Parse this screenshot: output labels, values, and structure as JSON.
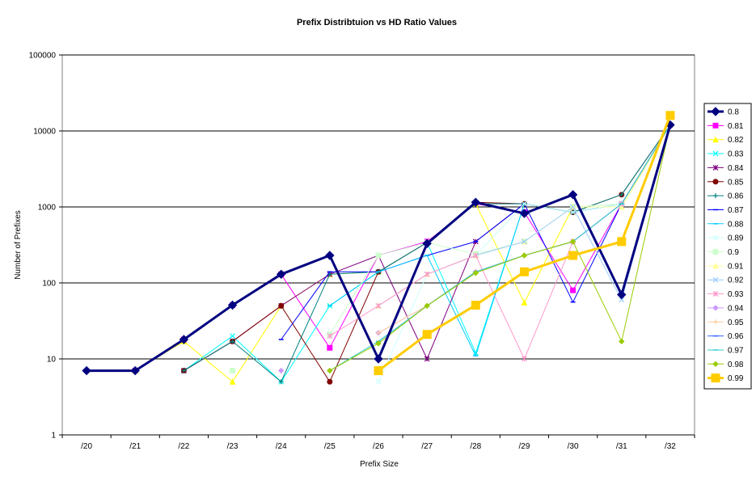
{
  "chart_data": {
    "type": "line",
    "title": "Prefix Distribtuion vs HD Ratio Values",
    "xlabel": "Prefix Size",
    "ylabel": "Number of Prefixes",
    "yscale": "log",
    "ylim": [
      1,
      100000
    ],
    "y_ticks": [
      1,
      10,
      100,
      1000,
      10000,
      100000
    ],
    "y_tick_labels": [
      "1",
      "10",
      "100",
      "1000",
      "10000",
      "100000"
    ],
    "grid": "horizontal major gridlines",
    "legend_position": "right",
    "categories": [
      "/20",
      "/21",
      "/22",
      "/23",
      "/24",
      "/25",
      "/26",
      "/27",
      "/28",
      "/29",
      "/30",
      "/31",
      "/32"
    ],
    "series": [
      {
        "name": "0.8",
        "color": "#000080",
        "marker": "diamond",
        "width": 3,
        "values": [
          7,
          7,
          18,
          51,
          130,
          230,
          10,
          330,
          1150,
          820,
          1450,
          70,
          12000
        ]
      },
      {
        "name": "0.81",
        "color": "#FF00FF",
        "marker": "square",
        "width": 1,
        "values": [
          null,
          7,
          18,
          51,
          130,
          14,
          230,
          350,
          1100,
          850,
          80,
          1100,
          12000
        ]
      },
      {
        "name": "0.82",
        "color": "#FFFF00",
        "marker": "triangle",
        "width": 1,
        "values": [
          null,
          7,
          17,
          5,
          50,
          130,
          140,
          340,
          1100,
          55,
          1000,
          1000,
          12000
        ]
      },
      {
        "name": "0.83",
        "color": "#00FFFF",
        "marker": "x",
        "width": 1,
        "values": [
          null,
          null,
          7,
          20,
          5,
          50,
          140,
          340,
          12,
          1100,
          850,
          1100,
          12000
        ]
      },
      {
        "name": "0.84",
        "color": "#800080",
        "marker": "star",
        "width": 1,
        "values": [
          null,
          null,
          7,
          17,
          50,
          130,
          230,
          10,
          350,
          1100,
          850,
          1100,
          12000
        ]
      },
      {
        "name": "0.85",
        "color": "#800000",
        "marker": "circle",
        "width": 1,
        "values": [
          null,
          null,
          7,
          17,
          50,
          5,
          140,
          340,
          1150,
          1100,
          850,
          1450,
          12000
        ]
      },
      {
        "name": "0.86",
        "color": "#008080",
        "marker": "plus",
        "width": 1,
        "values": [
          null,
          null,
          7,
          17,
          5,
          130,
          140,
          340,
          1100,
          1100,
          850,
          1450,
          12000
        ]
      },
      {
        "name": "0.87",
        "color": "#0000FF",
        "marker": "dash",
        "width": 1,
        "values": [
          null,
          null,
          null,
          null,
          18,
          140,
          140,
          230,
          350,
          1100,
          56,
          1100,
          12000
        ]
      },
      {
        "name": "0.88",
        "color": "#00CCFF",
        "marker": "dash",
        "width": 1,
        "values": [
          null,
          null,
          null,
          null,
          null,
          50,
          140,
          230,
          11,
          1100,
          850,
          1100,
          12000
        ]
      },
      {
        "name": "0.89",
        "color": "#CCFFFF",
        "marker": "x",
        "width": 1,
        "values": [
          null,
          null,
          null,
          null,
          null,
          null,
          5,
          130,
          230,
          1100,
          850,
          1100,
          12000
        ]
      },
      {
        "name": "0.9",
        "color": "#CCFFCC",
        "marker": "square",
        "width": 1,
        "values": [
          null,
          null,
          null,
          7,
          null,
          21,
          230,
          340,
          240,
          350,
          1000,
          1100,
          12000
        ]
      },
      {
        "name": "0.91",
        "color": "#FFFF99",
        "marker": "triangle",
        "width": 1,
        "values": [
          null,
          null,
          null,
          null,
          null,
          null,
          50,
          130,
          230,
          350,
          1000,
          1000,
          12000
        ]
      },
      {
        "name": "0.92",
        "color": "#99CCFF",
        "marker": "x",
        "width": 1,
        "values": [
          null,
          null,
          null,
          null,
          null,
          null,
          50,
          130,
          230,
          350,
          1000,
          60,
          12000
        ]
      },
      {
        "name": "0.93",
        "color": "#FF99CC",
        "marker": "star",
        "width": 1,
        "values": [
          null,
          null,
          null,
          null,
          null,
          20,
          50,
          130,
          230,
          10,
          350,
          1100,
          12000
        ]
      },
      {
        "name": "0.94",
        "color": "#CC99FF",
        "marker": "diamond",
        "width": 1,
        "values": [
          null,
          null,
          null,
          null,
          7,
          null,
          22,
          50,
          140,
          230,
          350,
          1100,
          12000
        ]
      },
      {
        "name": "0.95",
        "color": "#FFCC99",
        "marker": "plus",
        "width": 1,
        "values": [
          null,
          null,
          null,
          null,
          null,
          null,
          22,
          50,
          140,
          230,
          350,
          1100,
          12000
        ]
      },
      {
        "name": "0.96",
        "color": "#3366FF",
        "marker": "dash",
        "width": 1,
        "values": [
          null,
          null,
          null,
          null,
          null,
          null,
          17,
          50,
          140,
          230,
          350,
          1100,
          12000
        ]
      },
      {
        "name": "0.97",
        "color": "#33CCCC",
        "marker": "dash",
        "width": 1,
        "values": [
          null,
          null,
          null,
          null,
          null,
          7,
          17,
          50,
          140,
          230,
          350,
          1100,
          12000
        ]
      },
      {
        "name": "0.98",
        "color": "#99CC00",
        "marker": "diamond",
        "width": 1,
        "values": [
          null,
          null,
          null,
          null,
          null,
          7,
          16,
          50,
          135,
          230,
          350,
          17,
          12000
        ]
      },
      {
        "name": "0.99",
        "color": "#FFCC00",
        "marker": "square",
        "width": 3,
        "values": [
          null,
          null,
          null,
          null,
          null,
          null,
          7,
          21,
          51,
          140,
          230,
          350,
          16000
        ]
      }
    ]
  }
}
